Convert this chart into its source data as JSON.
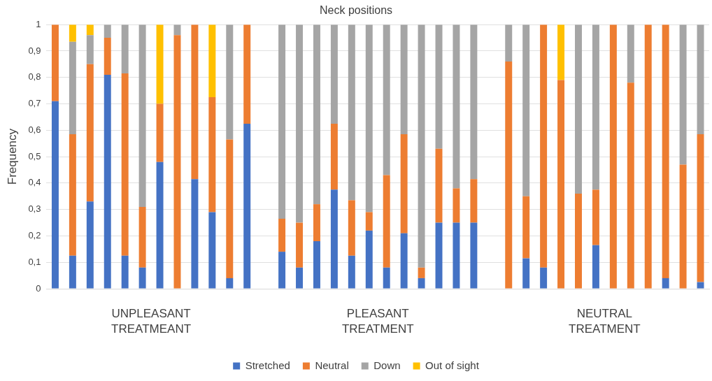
{
  "chart_data": {
    "type": "bar",
    "stacked": true,
    "title": "Neck positions",
    "ylabel": "Frequency",
    "categories": [
      null,
      null,
      null,
      null,
      null,
      null,
      null,
      null,
      null,
      null,
      null,
      null,
      null,
      null,
      null,
      null,
      null,
      null,
      null,
      null,
      null,
      null,
      null,
      null,
      null,
      null,
      null,
      null,
      null,
      null,
      null,
      null,
      null,
      null,
      null,
      null,
      null,
      null
    ],
    "series": [
      {
        "name": "Stretched",
        "color": "#4472c4",
        "values": [
          0.71,
          0.125,
          0.33,
          0.81,
          0.125,
          0.08,
          0.48,
          0,
          0.415,
          0.29,
          0.04,
          0.625,
          null,
          0.14,
          0.08,
          0.18,
          0.375,
          0.125,
          0.22,
          0.08,
          0.21,
          0.04,
          0.25,
          0.25,
          0.25,
          null,
          0,
          0.115,
          0.08,
          0,
          0,
          0.165,
          0,
          0,
          0,
          0.04,
          0,
          0.025
        ]
      },
      {
        "name": "Neutral",
        "color": "#ed7d31",
        "values": [
          0.29,
          0.46,
          0.52,
          0.14,
          0.69,
          0.23,
          0.22,
          0.96,
          0.585,
          0.435,
          0.525,
          0.375,
          null,
          0.125,
          0.17,
          0.14,
          0.25,
          0.21,
          0.07,
          0.35,
          0.375,
          0.04,
          0.28,
          0.13,
          0.165,
          null,
          0.86,
          0.235,
          0.92,
          0.79,
          0.36,
          0.21,
          1,
          0.78,
          1,
          0.96,
          0.47,
          0.56
        ]
      },
      {
        "name": "Down",
        "color": "#a5a5a5",
        "values": [
          0,
          0.35,
          0.11,
          0.05,
          0.185,
          0.69,
          0,
          0.04,
          0,
          0,
          0.435,
          0,
          null,
          0.735,
          0.75,
          0.68,
          0.375,
          0.665,
          0.71,
          0.57,
          0.415,
          0.92,
          0.47,
          0.62,
          0.585,
          null,
          0.14,
          0.65,
          0,
          0,
          0.64,
          0.625,
          0,
          0.22,
          0,
          0,
          0.53,
          0.415
        ]
      },
      {
        "name": "Out of sight",
        "color": "#ffc000",
        "values": [
          0,
          0.065,
          0.04,
          0,
          0,
          0,
          0.3,
          0,
          0,
          0.275,
          0,
          0,
          null,
          0,
          0,
          0,
          0,
          0,
          0,
          0,
          0,
          0,
          0,
          0,
          0,
          null,
          0,
          0,
          0,
          0.21,
          0,
          0,
          0,
          0,
          0,
          0,
          0,
          0
        ]
      }
    ],
    "ylim": [
      0,
      1
    ],
    "yticks": [
      0,
      {
        "value": 0.1,
        "label": "0,1"
      },
      {
        "value": 0.2,
        "label": "0,2"
      },
      {
        "value": 0.3,
        "label": "0,3"
      },
      {
        "value": 0.4,
        "label": "0,4"
      },
      {
        "value": 0.5,
        "label": "0,5"
      },
      {
        "value": 0.6,
        "label": "0,6"
      },
      {
        "value": 0.7,
        "label": "0,7"
      },
      {
        "value": 0.8,
        "label": "0,8"
      },
      {
        "value": 0.9,
        "label": "0,9"
      },
      1
    ],
    "grid": "y",
    "legend": "bottom",
    "tick_labels": "y",
    "annotations": [
      "UNPLEASANT\nTREATMEANT",
      "PLEASANT\nTREATMENT",
      "NEUTRAL\nTREATMENT"
    ]
  }
}
